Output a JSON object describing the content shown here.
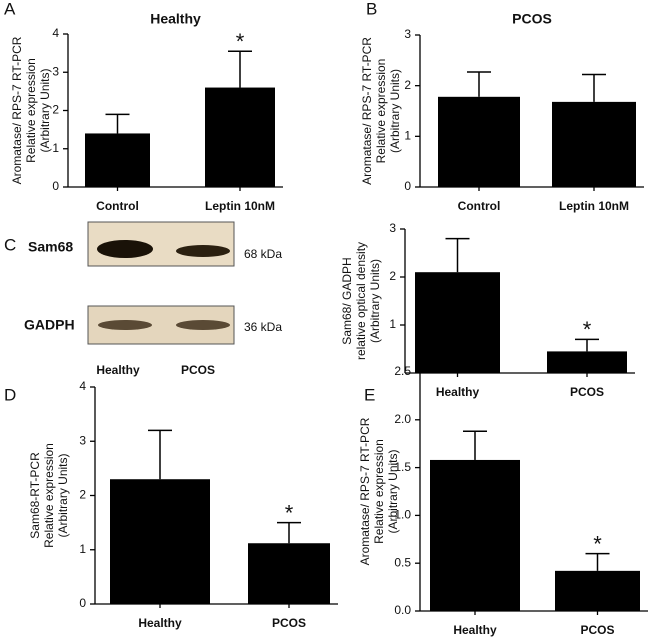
{
  "chart_data": [
    {
      "type": "bar",
      "panel": "A",
      "title": "Healthy",
      "ylabel": [
        "Aromatase/ RPS-7 RT-PCR",
        "Relative expression",
        "(Arbitrary Units)"
      ],
      "categories": [
        "Control",
        "Leptin 10nM"
      ],
      "values": [
        1.4,
        2.6
      ],
      "errors": [
        0.5,
        0.95
      ],
      "color": "#000000",
      "ylim": [
        0,
        4
      ],
      "yticks": [
        0,
        1,
        2,
        3,
        4
      ],
      "annotation": "*"
    },
    {
      "type": "bar",
      "panel": "B",
      "title": "PCOS",
      "ylabel": [
        "Aromatase/ RPS-7 RT-PCR",
        "Relative expression",
        "(Arbitrary Units)"
      ],
      "categories": [
        "Control",
        "Leptin 10nM"
      ],
      "values": [
        1.78,
        1.68
      ],
      "errors": [
        0.49,
        0.54
      ],
      "color": "#000000",
      "ylim": [
        0,
        3
      ],
      "yticks": [
        0,
        1,
        2,
        3
      ]
    },
    {
      "type": "bar",
      "ylabel": [
        "Sam68/ GADPH",
        "relative optical density",
        "(Arbitrary Units)"
      ],
      "categories": [
        "Healthy",
        "PCOS"
      ],
      "values": [
        2.1,
        0.45
      ],
      "errors": [
        0.7,
        0.25
      ],
      "color": "#000000",
      "ylim": [
        0,
        3
      ],
      "yticks": [
        1,
        2,
        3
      ],
      "annotation": "*"
    },
    {
      "type": "bar",
      "panel": "D",
      "ylabel": [
        "Sam68-RT-PCR",
        "Relative expression",
        "(Arbitrary Units)"
      ],
      "categories": [
        "Healthy",
        "PCOS"
      ],
      "values": [
        2.3,
        1.12
      ],
      "errors": [
        0.9,
        0.38
      ],
      "color": "#000000",
      "ylim": [
        0,
        4
      ],
      "yticks": [
        0,
        1,
        2,
        3,
        4
      ],
      "annotation": "*"
    },
    {
      "type": "bar",
      "panel": "E",
      "ylabel": [
        "Aromatase/ RPS-7 RT-PCR",
        "Relative expression",
        "(Arbitrary Units)"
      ],
      "categories": [
        "Healthy",
        "PCOS"
      ],
      "values": [
        1.58,
        0.42
      ],
      "errors": [
        0.3,
        0.18
      ],
      "color": "#000000",
      "ylim": [
        0,
        2.5
      ],
      "yticks": [
        {
          "value": 0,
          "label": "0.0"
        },
        0.5,
        {
          "value": 1,
          "label": "1.0"
        },
        1.5,
        {
          "value": 2,
          "label": "2.0"
        },
        2.5
      ],
      "annotation": "*"
    }
  ],
  "blot": {
    "panel": "C",
    "rows": [
      {
        "label": "Sam68",
        "size": "68 kDa"
      },
      {
        "label": "GADPH",
        "size": "36 kDa"
      }
    ],
    "lanes": [
      "Healthy",
      "PCOS"
    ]
  }
}
